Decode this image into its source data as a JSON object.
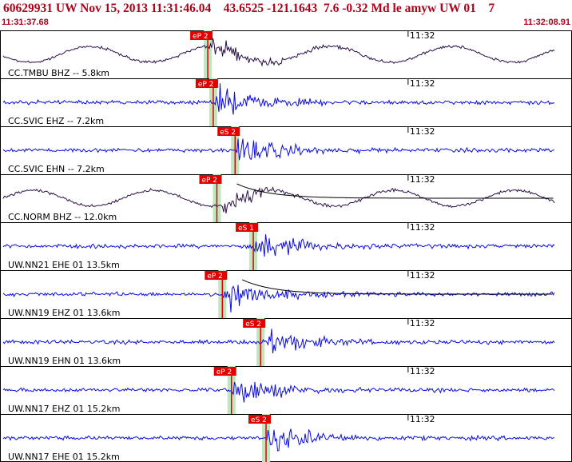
{
  "header": {
    "title": "60629931 UW Nov 15, 2013 11:31:46.04    43.6525 -121.1643  7.6 -0.32 Md le amyw UW 01    7",
    "time_start": "11:31:37.68",
    "time_end": "11:32:08.91"
  },
  "colors": {
    "header_text": "#b0001a",
    "trace_bhz": "#2a0f45",
    "trace_short": "#0a0ae6",
    "pick": "#e00000",
    "pick_label_bg": "#e00000",
    "pick_band": "#bfe6bf",
    "fit_curve_black": "#000000",
    "fit_curve_red": "#e00000"
  },
  "chart_data": {
    "type": "line",
    "x_unit": "time",
    "xlim": [
      "11:31:37.68",
      "11:32:08.91"
    ],
    "minute_tick_label": "11:32",
    "minute_tick_time": "11:32:00",
    "traces": [
      {
        "label": "CC.TMBU BHZ -- 5.8km",
        "channel_type": "BHZ",
        "picks": [
          {
            "phase": "eP 2",
            "time": "11:31:49.0"
          }
        ]
      },
      {
        "label": "CC.SVIC EHZ -- 7.2km",
        "channel_type": "EHZ",
        "picks": [
          {
            "phase": "eP 2",
            "time": "11:31:49.3"
          }
        ]
      },
      {
        "label": "CC.SVIC EHN -- 7.2km",
        "channel_type": "EHN",
        "picks": [
          {
            "phase": "eS 2",
            "time": "11:31:50.5"
          }
        ]
      },
      {
        "label": "CC.NORM BHZ -- 12.0km",
        "channel_type": "BHZ",
        "picks": [
          {
            "phase": "eP 2",
            "time": "11:31:49.5"
          }
        ]
      },
      {
        "label": "UW.NN21 EHE 01 13.5km",
        "channel_type": "EHE",
        "picks": [
          {
            "phase": "eS 1",
            "time": "11:31:51.5"
          }
        ]
      },
      {
        "label": "UW.NN19 EHZ 01 13.6km",
        "channel_type": "EHZ",
        "picks": [
          {
            "phase": "eP 2",
            "time": "11:31:49.8"
          }
        ]
      },
      {
        "label": "UW.NN19 EHN 01 13.6km",
        "channel_type": "EHN",
        "picks": [
          {
            "phase": "eS 2",
            "time": "11:31:51.9"
          }
        ]
      },
      {
        "label": "UW.NN17 EHZ 01 15.2km",
        "channel_type": "EHZ",
        "picks": [
          {
            "phase": "eP 2",
            "time": "11:31:50.3"
          }
        ]
      },
      {
        "label": "UW.NN17 EHE 01 15.2km",
        "channel_type": "EHE",
        "picks": [
          {
            "phase": "eS 2",
            "time": "11:31:52.2"
          }
        ]
      }
    ]
  }
}
